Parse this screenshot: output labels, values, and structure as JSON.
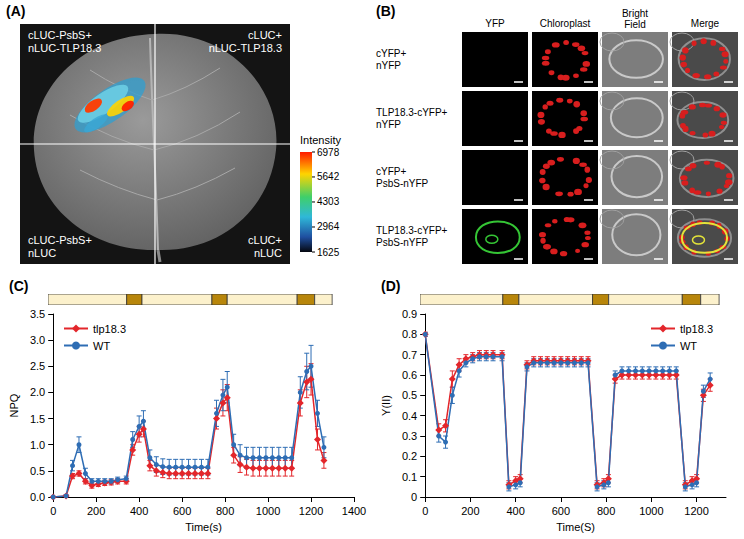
{
  "panel_a": {
    "letter": "(A)",
    "quadrants": {
      "top_left": [
        "cLUC-PsbS+",
        "nLUC-TLP18.3"
      ],
      "top_right": [
        "cLUC+",
        "nLUC-TLP18.3"
      ],
      "bottom_left": [
        "cLUC-PsbS+",
        "nLUC"
      ],
      "bottom_right": [
        "cLUC+",
        "nLUC"
      ]
    },
    "color_bar": {
      "label": "Intensity",
      "range": [
        1625,
        6978
      ],
      "ticks": [
        6978,
        5642,
        4303,
        2964,
        1625
      ]
    }
  },
  "panel_b": {
    "letter": "(B)",
    "columns": [
      "YFP",
      "Chloroplast",
      "Bright Field",
      "Merge"
    ],
    "rows": [
      [
        "cYFP+",
        "nYFP"
      ],
      [
        "TLP18.3-cYFP+",
        "nYFP"
      ],
      [
        "cYFP+",
        "PsbS-nYFP"
      ],
      [
        "TLP18.3-cYFP+",
        "PsbS-nYFP"
      ]
    ]
  },
  "chart_data": [
    {
      "type": "line",
      "title": "(C)",
      "xlabel": "Time(s)",
      "ylabel": "NPQ",
      "x": [
        0,
        60,
        90,
        120,
        150,
        180,
        210,
        240,
        270,
        300,
        340,
        370,
        400,
        420,
        450,
        480,
        510,
        540,
        570,
        600,
        630,
        660,
        690,
        720,
        760,
        790,
        810,
        840,
        870,
        900,
        930,
        960,
        990,
        1020,
        1050,
        1080,
        1110,
        1150,
        1180,
        1200,
        1230,
        1260
      ],
      "xlim": [
        0,
        1400
      ],
      "xticks": [
        0,
        200,
        400,
        600,
        800,
        1000,
        1200,
        1400
      ],
      "ylim": [
        0,
        3.5
      ],
      "yticks": [
        {
          "value": 0,
          "label": "0.0"
        },
        {
          "value": 0.5,
          "label": "0.5"
        },
        {
          "value": 1,
          "label": "1.0"
        },
        {
          "value": 1.5,
          "label": "1.5"
        },
        {
          "value": 2,
          "label": "2.0"
        },
        {
          "value": 2.5,
          "label": "2.5"
        },
        {
          "value": 3,
          "label": "3.0"
        },
        {
          "value": 3.5,
          "label": "3.5"
        }
      ],
      "grid": false,
      "legend": "upper left",
      "periods": [
        {
          "start": 0,
          "end": 360,
          "color": "#fcf1cc"
        },
        {
          "start": 360,
          "end": 430,
          "color": "#b8860b"
        },
        {
          "start": 430,
          "end": 750,
          "color": "#fcf1cc"
        },
        {
          "start": 750,
          "end": 820,
          "color": "#b8860b"
        },
        {
          "start": 820,
          "end": 1140,
          "color": "#fcf1cc"
        },
        {
          "start": 1140,
          "end": 1220,
          "color": "#b8860b"
        },
        {
          "start": 1220,
          "end": 1300,
          "color": "#fcf1cc"
        }
      ],
      "series": [
        {
          "name": "tlp18.3",
          "color": "#e3262b",
          "marker": "diamond",
          "values": [
            0,
            0.02,
            0.4,
            0.45,
            0.3,
            0.22,
            0.25,
            0.27,
            0.28,
            0.3,
            0.3,
            0.9,
            1.2,
            1.3,
            0.6,
            0.5,
            0.47,
            0.45,
            0.45,
            0.45,
            0.45,
            0.45,
            0.45,
            0.45,
            1.5,
            1.8,
            1.9,
            0.8,
            0.62,
            0.57,
            0.55,
            0.55,
            0.55,
            0.55,
            0.55,
            0.55,
            0.55,
            1.8,
            2.2,
            2.25,
            1.1,
            0.7
          ],
          "errors": [
            0,
            0.02,
            0.05,
            0.05,
            0.05,
            0.05,
            0.05,
            0.05,
            0.05,
            0.05,
            0.05,
            0.1,
            0.15,
            0.15,
            0.1,
            0.1,
            0.1,
            0.1,
            0.1,
            0.1,
            0.1,
            0.1,
            0.1,
            0.1,
            0.2,
            0.25,
            0.25,
            0.15,
            0.15,
            0.15,
            0.15,
            0.15,
            0.15,
            0.15,
            0.15,
            0.15,
            0.15,
            0.25,
            0.3,
            0.3,
            0.2,
            0.15
          ]
        },
        {
          "name": "WT",
          "color": "#2e6db4",
          "marker": "circle",
          "values": [
            0,
            0.02,
            0.6,
            1.0,
            0.45,
            0.3,
            0.3,
            0.3,
            0.3,
            0.33,
            0.35,
            1.1,
            1.35,
            1.45,
            0.75,
            0.62,
            0.58,
            0.57,
            0.57,
            0.57,
            0.57,
            0.57,
            0.57,
            0.57,
            1.6,
            1.95,
            2.1,
            1.0,
            0.8,
            0.75,
            0.75,
            0.75,
            0.75,
            0.75,
            0.75,
            0.75,
            0.75,
            2.0,
            2.4,
            2.5,
            1.6,
            0.95
          ],
          "errors": [
            0,
            0.02,
            0.1,
            0.15,
            0.1,
            0.05,
            0.05,
            0.05,
            0.05,
            0.05,
            0.05,
            0.15,
            0.2,
            0.2,
            0.15,
            0.15,
            0.15,
            0.15,
            0.15,
            0.15,
            0.15,
            0.15,
            0.15,
            0.15,
            0.25,
            0.3,
            0.3,
            0.2,
            0.2,
            0.2,
            0.2,
            0.2,
            0.2,
            0.2,
            0.2,
            0.2,
            0.2,
            0.3,
            0.35,
            0.4,
            0.25,
            0.2
          ]
        }
      ]
    },
    {
      "type": "line",
      "title": "(D)",
      "xlabel": "Time(S)",
      "ylabel": "Y(II)",
      "x": [
        0,
        60,
        90,
        120,
        150,
        180,
        210,
        240,
        270,
        300,
        340,
        370,
        400,
        420,
        450,
        480,
        510,
        540,
        570,
        600,
        630,
        660,
        690,
        720,
        760,
        790,
        810,
        840,
        870,
        900,
        930,
        960,
        990,
        1020,
        1050,
        1080,
        1110,
        1150,
        1180,
        1200,
        1230,
        1260
      ],
      "xlim": [
        0,
        1330
      ],
      "xticks": [
        0,
        200,
        400,
        600,
        800,
        1000,
        1200
      ],
      "ylim": [
        0,
        0.9
      ],
      "yticks": [
        0,
        0.1,
        0.2,
        0.3,
        0.4,
        0.5,
        0.6,
        0.7,
        0.8,
        0.9
      ],
      "grid": false,
      "legend": "upper right",
      "periods": [
        {
          "start": 0,
          "end": 360,
          "color": "#fcf1cc"
        },
        {
          "start": 360,
          "end": 430,
          "color": "#b8860b"
        },
        {
          "start": 430,
          "end": 750,
          "color": "#fcf1cc"
        },
        {
          "start": 750,
          "end": 820,
          "color": "#b8860b"
        },
        {
          "start": 820,
          "end": 1140,
          "color": "#fcf1cc"
        },
        {
          "start": 1140,
          "end": 1220,
          "color": "#b8860b"
        },
        {
          "start": 1220,
          "end": 1300,
          "color": "#fcf1cc"
        }
      ],
      "series": [
        {
          "name": "tlp18.3",
          "color": "#e3262b",
          "marker": "diamond",
          "values": [
            0.8,
            0.33,
            0.35,
            0.58,
            0.65,
            0.68,
            0.69,
            0.7,
            0.7,
            0.7,
            0.7,
            0.06,
            0.08,
            0.09,
            0.65,
            0.67,
            0.67,
            0.67,
            0.67,
            0.67,
            0.67,
            0.67,
            0.67,
            0.67,
            0.06,
            0.07,
            0.09,
            0.58,
            0.6,
            0.6,
            0.6,
            0.6,
            0.6,
            0.6,
            0.6,
            0.6,
            0.6,
            0.06,
            0.08,
            0.09,
            0.5,
            0.55
          ],
          "errors": [
            0.01,
            0.03,
            0.03,
            0.04,
            0.03,
            0.02,
            0.02,
            0.02,
            0.02,
            0.02,
            0.02,
            0.02,
            0.02,
            0.02,
            0.02,
            0.02,
            0.02,
            0.02,
            0.02,
            0.02,
            0.02,
            0.02,
            0.02,
            0.02,
            0.02,
            0.02,
            0.02,
            0.02,
            0.02,
            0.02,
            0.02,
            0.02,
            0.02,
            0.02,
            0.02,
            0.02,
            0.02,
            0.02,
            0.02,
            0.02,
            0.03,
            0.03
          ]
        },
        {
          "name": "WT",
          "color": "#2e6db4",
          "marker": "circle",
          "values": [
            0.8,
            0.3,
            0.27,
            0.5,
            0.62,
            0.66,
            0.68,
            0.69,
            0.69,
            0.69,
            0.69,
            0.05,
            0.06,
            0.07,
            0.64,
            0.66,
            0.66,
            0.66,
            0.66,
            0.66,
            0.66,
            0.66,
            0.66,
            0.66,
            0.05,
            0.06,
            0.07,
            0.6,
            0.62,
            0.62,
            0.62,
            0.62,
            0.62,
            0.62,
            0.62,
            0.62,
            0.62,
            0.05,
            0.06,
            0.07,
            0.52,
            0.58
          ],
          "errors": [
            0.01,
            0.03,
            0.03,
            0.04,
            0.03,
            0.02,
            0.02,
            0.02,
            0.02,
            0.02,
            0.02,
            0.02,
            0.02,
            0.02,
            0.02,
            0.02,
            0.02,
            0.02,
            0.02,
            0.02,
            0.02,
            0.02,
            0.02,
            0.02,
            0.02,
            0.02,
            0.02,
            0.02,
            0.02,
            0.02,
            0.02,
            0.02,
            0.02,
            0.02,
            0.02,
            0.02,
            0.02,
            0.02,
            0.02,
            0.02,
            0.03,
            0.03
          ]
        }
      ]
    }
  ]
}
